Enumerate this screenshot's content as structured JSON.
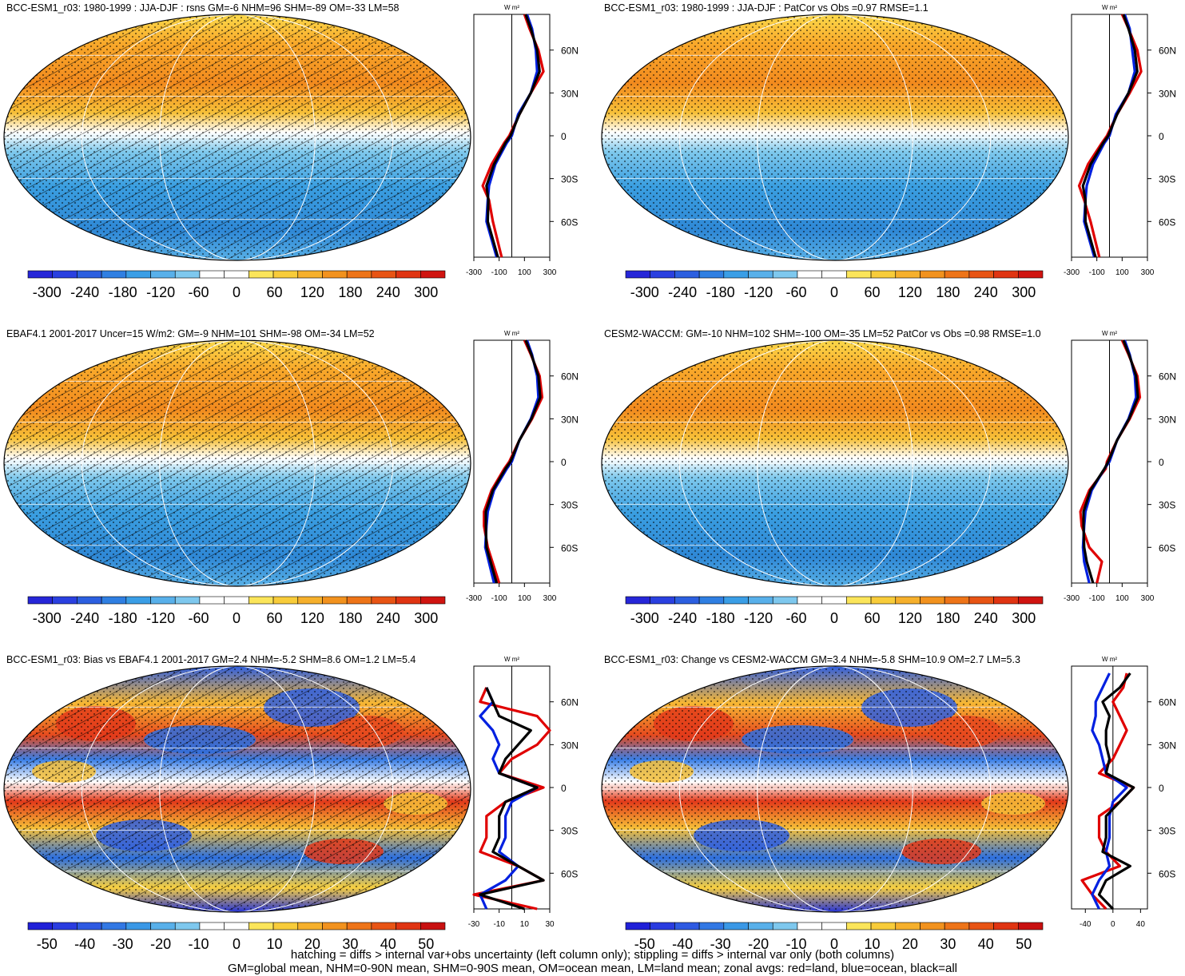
{
  "chart_data": [
    {
      "type": "heatmap",
      "title": "BCC-ESM1_r03: 1980-1999 : JJA-DJF : rsns GM=-6 NHM=96 SHM=-89 OM=-33 LM=58",
      "projection": "robinson",
      "colorbar": {
        "ticks": [
          "-300",
          "-240",
          "-180",
          "-120",
          "-60",
          "0",
          "60",
          "120",
          "180",
          "240",
          "300"
        ],
        "range": [
          -330,
          330
        ]
      },
      "zonal_profile": {
        "unit_label": "W m²",
        "lat_ticks": [
          "60N",
          "30N",
          "0",
          "30S",
          "60S"
        ],
        "x_ticks": [
          "-300",
          "-100",
          "100",
          "300"
        ],
        "xlim": [
          -300,
          300
        ],
        "series": [
          {
            "color": "#e00000",
            "lat": [
              -85,
              -60,
              -45,
              -35,
              -20,
              -5,
              0,
              15,
              30,
              45,
              60,
              75,
              85
            ],
            "values": [
              -80,
              -150,
              -180,
              -230,
              -160,
              -60,
              -20,
              60,
              150,
              250,
              210,
              140,
              100
            ]
          },
          {
            "color": "#0020e0",
            "lat": [
              -85,
              -60,
              -45,
              -35,
              -20,
              -5,
              0,
              15,
              30,
              45,
              60,
              75,
              85
            ],
            "values": [
              -120,
              -200,
              -190,
              -180,
              -130,
              -40,
              0,
              50,
              150,
              200,
              190,
              160,
              120
            ]
          },
          {
            "color": "#000000",
            "lat": [
              -85,
              -60,
              -45,
              -35,
              -20,
              -5,
              0,
              15,
              30,
              45,
              60,
              75,
              85
            ],
            "values": [
              -110,
              -190,
              -185,
              -200,
              -140,
              -50,
              -10,
              60,
              150,
              220,
              200,
              150,
              110
            ]
          }
        ]
      }
    },
    {
      "type": "heatmap",
      "title": "BCC-ESM1_r03: 1980-1999 : JJA-DJF : PatCor vs Obs =0.97 RMSE=1.1",
      "projection": "robinson",
      "colorbar": {
        "ticks": [
          "-300",
          "-240",
          "-180",
          "-120",
          "-60",
          "0",
          "60",
          "120",
          "180",
          "240",
          "300"
        ],
        "range": [
          -330,
          330
        ]
      },
      "zonal_profile": {
        "unit_label": "W m²",
        "lat_ticks": [
          "60N",
          "30N",
          "0",
          "30S",
          "60S"
        ],
        "x_ticks": [
          "-300",
          "-100",
          "100",
          "300"
        ],
        "xlim": [
          -300,
          300
        ],
        "series": [
          {
            "color": "#e00000",
            "lat": [
              -85,
              -60,
              -45,
              -35,
              -20,
              -5,
              0,
              15,
              30,
              45,
              60,
              75,
              85
            ],
            "values": [
              -80,
              -150,
              -200,
              -240,
              -170,
              -60,
              -20,
              60,
              160,
              250,
              220,
              150,
              100
            ]
          },
          {
            "color": "#0020e0",
            "lat": [
              -85,
              -60,
              -45,
              -35,
              -20,
              -5,
              0,
              15,
              30,
              45,
              60,
              75,
              85
            ],
            "values": [
              -120,
              -200,
              -190,
              -180,
              -130,
              -40,
              0,
              50,
              150,
              200,
              180,
              160,
              120
            ]
          },
          {
            "color": "#000000",
            "lat": [
              -85,
              -60,
              -45,
              -35,
              -20,
              -5,
              0,
              15,
              30,
              45,
              60,
              75,
              85
            ],
            "values": [
              -110,
              -190,
              -190,
              -210,
              -150,
              -50,
              -10,
              60,
              150,
              220,
              200,
              150,
              110
            ]
          }
        ]
      }
    },
    {
      "type": "heatmap",
      "title": "EBAF4.1 2001-2017 Uncer=15 W/m2: GM=-9 NHM=101 SHM=-98 OM=-34 LM=52",
      "projection": "robinson",
      "colorbar": {
        "ticks": [
          "-300",
          "-240",
          "-180",
          "-120",
          "-60",
          "0",
          "60",
          "120",
          "180",
          "240",
          "300"
        ],
        "range": [
          -330,
          330
        ]
      },
      "zonal_profile": {
        "unit_label": "W m²",
        "lat_ticks": [
          "60N",
          "30N",
          "0",
          "30S",
          "60S"
        ],
        "x_ticks": [
          "-300",
          "-100",
          "100",
          "300"
        ],
        "xlim": [
          -300,
          300
        ],
        "series": [
          {
            "color": "#e00000",
            "lat": [
              -85,
              -60,
              -45,
              -35,
              -20,
              -5,
              0,
              15,
              30,
              45,
              60,
              75,
              85
            ],
            "values": [
              -100,
              -190,
              -220,
              -220,
              -160,
              -60,
              -20,
              60,
              160,
              240,
              220,
              150,
              100
            ]
          },
          {
            "color": "#0020e0",
            "lat": [
              -85,
              -60,
              -45,
              -35,
              -20,
              -5,
              0,
              15,
              30,
              45,
              60,
              75,
              85
            ],
            "values": [
              -140,
              -210,
              -200,
              -190,
              -140,
              -40,
              0,
              60,
              150,
              210,
              200,
              160,
              120
            ]
          },
          {
            "color": "#000000",
            "lat": [
              -85,
              -60,
              -45,
              -35,
              -20,
              -5,
              0,
              15,
              30,
              45,
              60,
              75,
              85
            ],
            "values": [
              -120,
              -200,
              -205,
              -205,
              -150,
              -50,
              -10,
              60,
              155,
              225,
              210,
              155,
              110
            ]
          }
        ]
      }
    },
    {
      "type": "heatmap",
      "title": "CESM2-WACCM: GM=-10 NHM=102 SHM=-100 OM=-35 LM=52 PatCor vs Obs =0.98 RMSE=1.0",
      "projection": "robinson",
      "colorbar": {
        "ticks": [
          "-300",
          "-240",
          "-180",
          "-120",
          "-60",
          "0",
          "60",
          "120",
          "180",
          "240",
          "300"
        ],
        "range": [
          -330,
          330
        ]
      },
      "zonal_profile": {
        "unit_label": "W m²",
        "lat_ticks": [
          "60N",
          "30N",
          "0",
          "30S",
          "60S"
        ],
        "x_ticks": [
          "-300",
          "-100",
          "100",
          "300"
        ],
        "xlim": [
          -300,
          300
        ],
        "series": [
          {
            "color": "#e00000",
            "lat": [
              -85,
              -70,
              -60,
              -45,
              -35,
              -20,
              -5,
              0,
              15,
              30,
              45,
              60,
              75,
              85
            ],
            "values": [
              -100,
              -60,
              -160,
              -220,
              -230,
              -160,
              -30,
              -20,
              60,
              160,
              240,
              220,
              150,
              100
            ]
          },
          {
            "color": "#0020e0",
            "lat": [
              -85,
              -70,
              -60,
              -45,
              -35,
              -20,
              -5,
              0,
              15,
              30,
              45,
              60,
              75,
              85
            ],
            "values": [
              -160,
              -200,
              -210,
              -200,
              -190,
              -140,
              -40,
              0,
              60,
              150,
              210,
              200,
              160,
              120
            ]
          },
          {
            "color": "#000000",
            "lat": [
              -85,
              -70,
              -60,
              -45,
              -35,
              -20,
              -5,
              0,
              15,
              30,
              45,
              60,
              75,
              85
            ],
            "values": [
              -130,
              -180,
              -200,
              -205,
              -205,
              -150,
              -40,
              -10,
              60,
              155,
              225,
              210,
              155,
              110
            ]
          }
        ]
      }
    },
    {
      "type": "heatmap",
      "title": "BCC-ESM1_r03: Bias vs EBAF4.1 2001-2017 GM=2.4 NHM=-5.2 SHM=8.6 OM=1.2 LM=5.4",
      "projection": "robinson",
      "colorbar": {
        "ticks": [
          "-50",
          "-40",
          "-30",
          "-20",
          "-10",
          "0",
          "10",
          "20",
          "30",
          "40",
          "50"
        ],
        "range": [
          -55,
          55
        ]
      },
      "zonal_profile": {
        "unit_label": "W m²",
        "lat_ticks": [
          "60N",
          "30N",
          "0",
          "30S",
          "60S"
        ],
        "x_ticks": [
          "-30",
          "-10",
          "10",
          "30"
        ],
        "xlim": [
          -30,
          30
        ],
        "series": [
          {
            "color": "#e00000",
            "lat": [
              -85,
              -75,
              -65,
              -55,
              -45,
              -35,
              -20,
              -10,
              0,
              10,
              20,
              30,
              40,
              50,
              60,
              70
            ],
            "values": [
              20,
              -30,
              25,
              5,
              -25,
              -20,
              -20,
              -5,
              25,
              -10,
              0,
              20,
              30,
              20,
              -25,
              -20
            ]
          },
          {
            "color": "#0020e0",
            "lat": [
              -85,
              -75,
              -65,
              -55,
              -45,
              -35,
              -20,
              -10,
              0,
              10,
              20,
              30,
              40,
              50,
              60,
              70
            ],
            "values": [
              -20,
              -25,
              -5,
              5,
              -10,
              -5,
              -5,
              0,
              20,
              -10,
              -15,
              -10,
              -15,
              -25,
              -15,
              -20
            ]
          },
          {
            "color": "#000000",
            "lat": [
              -85,
              -75,
              -65,
              -55,
              -45,
              -35,
              -20,
              -10,
              0,
              10,
              20,
              30,
              40,
              50,
              60,
              70
            ],
            "values": [
              10,
              -25,
              25,
              5,
              -15,
              -10,
              -10,
              -5,
              20,
              -10,
              -5,
              5,
              15,
              -10,
              -15,
              -20
            ]
          }
        ]
      }
    },
    {
      "type": "heatmap",
      "title": "BCC-ESM1_r03: Change vs CESM2-WACCM GM=3.4 NHM=-5.8 SHM=10.9 OM=2.7 LM=5.3",
      "projection": "robinson",
      "colorbar": {
        "ticks": [
          "-50",
          "-40",
          "-30",
          "-20",
          "-10",
          "0",
          "10",
          "20",
          "30",
          "40",
          "50"
        ],
        "range": [
          -55,
          55
        ]
      },
      "zonal_profile": {
        "unit_label": "W m²",
        "lat_ticks": [
          "60N",
          "30N",
          "0",
          "30S",
          "60S"
        ],
        "x_ticks": [
          "-40",
          "0",
          "40"
        ],
        "xlim": [
          -60,
          50
        ],
        "series": [
          {
            "color": "#e00000",
            "lat": [
              -85,
              -75,
              -65,
              -55,
              -45,
              -35,
              -20,
              -10,
              0,
              10,
              20,
              30,
              40,
              50,
              60,
              70,
              80
            ],
            "values": [
              -10,
              -30,
              -45,
              10,
              -10,
              -20,
              -20,
              10,
              30,
              -20,
              0,
              10,
              20,
              10,
              0,
              15,
              20
            ]
          },
          {
            "color": "#0020e0",
            "lat": [
              -85,
              -75,
              -65,
              -55,
              -45,
              -35,
              -20,
              -10,
              0,
              10,
              20,
              30,
              40,
              50,
              60,
              70,
              80
            ],
            "values": [
              -20,
              -30,
              -20,
              -5,
              -10,
              -5,
              -5,
              0,
              20,
              -10,
              -15,
              -20,
              -30,
              -25,
              -25,
              -15,
              -5
            ]
          },
          {
            "color": "#000000",
            "lat": [
              -85,
              -75,
              -65,
              -55,
              -45,
              -35,
              -20,
              -10,
              0,
              10,
              20,
              30,
              40,
              50,
              60,
              70,
              80
            ],
            "values": [
              0,
              -20,
              -10,
              25,
              -15,
              -10,
              -10,
              10,
              30,
              -10,
              -5,
              -10,
              -10,
              -5,
              -15,
              10,
              25
            ]
          }
        ]
      }
    }
  ],
  "footer": {
    "line1": "hatching = diffs > internal var+obs uncertainty (left column only); stippling = diffs > internal var only (both columns)",
    "line2": "GM=global mean, NHM=0-90N mean, SHM=0-90S mean, OM=ocean mean, LM=land mean; zonal avgs: red=land, blue=ocean, black=all"
  }
}
